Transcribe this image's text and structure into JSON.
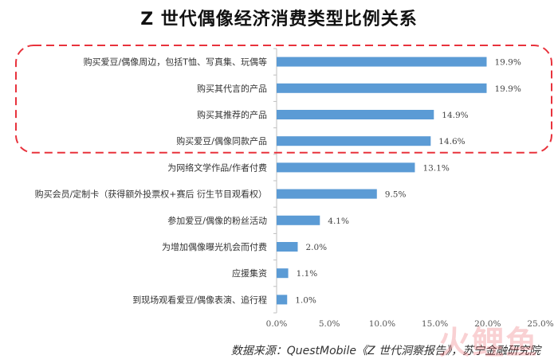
{
  "chart_data": {
    "type": "bar",
    "orientation": "horizontal",
    "title": "Z 世代偶像经济消费类型比例关系",
    "categories": [
      "购买爱豆/偶像周边，包括T恤、写真集、玩偶等",
      "购买其代言的产品",
      "购买其推荐的产品",
      "购买爱豆/偶像同款产品",
      "为网络文学作品/作者付费",
      "购买会员/定制卡（获得额外投票权+赛后 衍生节目观看权）",
      "参加爱豆/偶像的粉丝活动",
      "为增加偶像曝光机会而付费",
      "应援集资",
      "到现场观看爱豆/偶像表演、追行程"
    ],
    "values": [
      19.9,
      19.9,
      14.9,
      14.6,
      13.1,
      9.5,
      4.1,
      2.0,
      1.1,
      1.0
    ],
    "value_labels": [
      "19.9%",
      "19.9%",
      "14.9%",
      "14.6%",
      "13.1%",
      "9.5%",
      "4.1%",
      "2.0%",
      "1.1%",
      "1.0%"
    ],
    "x_ticks": [
      "0.0%",
      "5.0%",
      "10.0%",
      "15.0%",
      "20.0%",
      "25.0%"
    ],
    "xlim": [
      0,
      25
    ],
    "bar_color": "#5b9bd5",
    "highlight_color": "#e8323c",
    "highlighted_categories": 4,
    "source": "数据来源：QuestMobile《Z 世代洞察报告》，苏宁金融研究院"
  },
  "watermark": "火鲤鱼"
}
